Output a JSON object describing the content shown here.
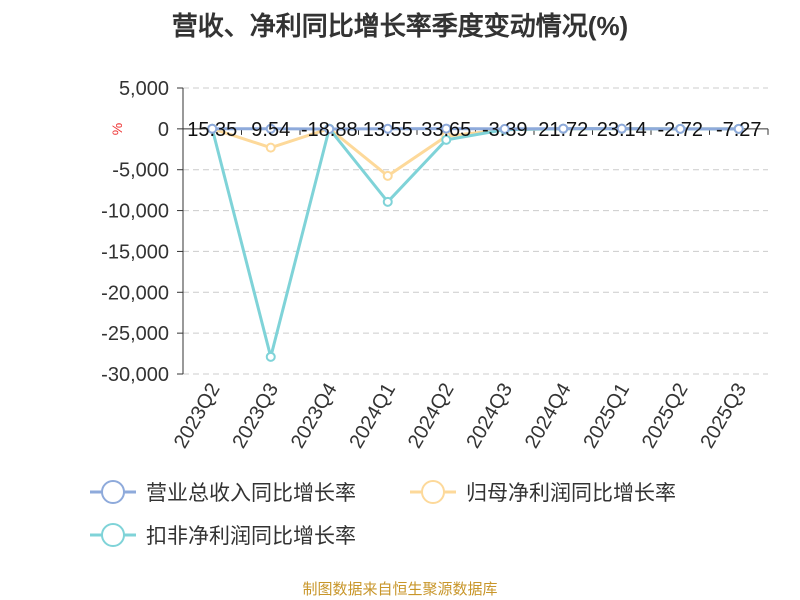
{
  "chart_data": {
    "type": "line",
    "title": "营收、净利同比增长率季度变动情况(%)",
    "ylabel": "%",
    "categories": [
      "2023Q2",
      "2023Q3",
      "2023Q4",
      "2024Q1",
      "2024Q2",
      "2024Q3",
      "2024Q4",
      "2025Q1",
      "2025Q2",
      "2025Q3"
    ],
    "ylim": [
      -30000,
      5000
    ],
    "yticks": [
      5000,
      0,
      -5000,
      -10000,
      -15000,
      -20000,
      -25000,
      -30000
    ],
    "ytick_labels": [
      "5,000",
      "0",
      "-5,000",
      "-10,000",
      "-15,000",
      "-20,000",
      "-25,000",
      "-30,000"
    ],
    "grid": true,
    "legend_position": "bottom",
    "series": [
      {
        "name": "营业总收入同比增长率",
        "color": "#8eaadb",
        "values": [
          15.35,
          9.54,
          -18.88,
          13.55,
          33.65,
          -3.39,
          21.72,
          23.14,
          -2.72,
          -7.27
        ],
        "labels": [
          "15.35",
          "9.54",
          "-18.88",
          "13.55",
          "33.65",
          "-3.39",
          "21.72",
          "23.14",
          "-2.72",
          "-7.27"
        ]
      },
      {
        "name": "归母净利润同比增长率",
        "color": "#fdd99a",
        "values": [
          20,
          -2300,
          30,
          -5750,
          -900,
          -100,
          20,
          10,
          5,
          5
        ]
      },
      {
        "name": "扣非净利润同比增长率",
        "color": "#7fd3d8",
        "values": [
          10,
          -27900,
          20,
          -8930,
          -1350,
          -100,
          10,
          10,
          5,
          5
        ]
      }
    ]
  },
  "source": "制图数据来自恒生聚源数据库"
}
